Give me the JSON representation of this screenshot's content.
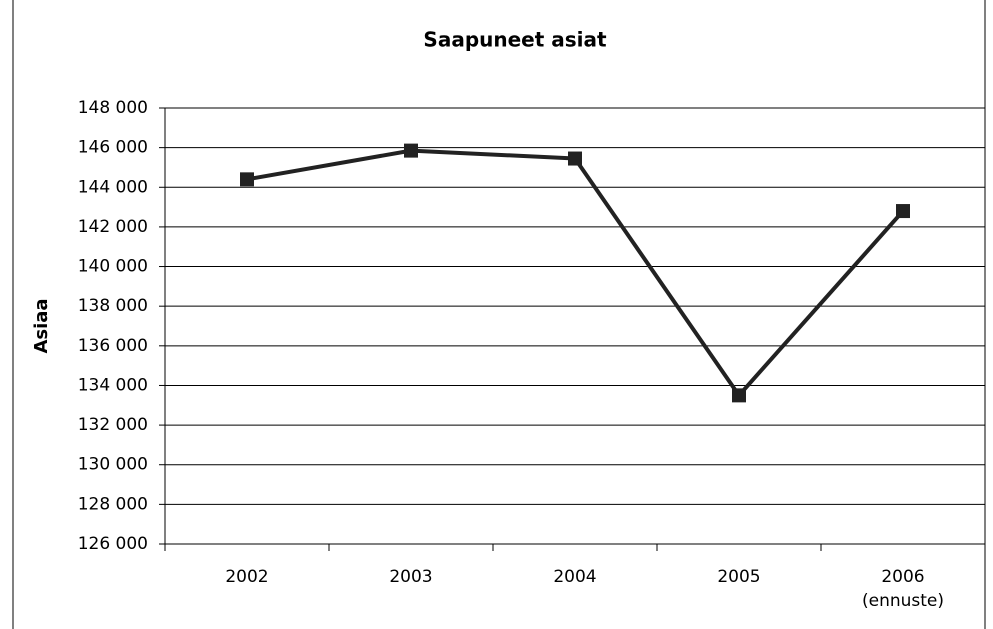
{
  "chart_data": {
    "type": "line",
    "title": "Saapuneet asiat",
    "y_label": "Asiaa",
    "categories": [
      "2002",
      "2003",
      "2004",
      "2005",
      "2006\n(ennuste)"
    ],
    "series": [
      {
        "name": "Saapuneet asiat",
        "color": "#222222",
        "values": [
          144400,
          145850,
          145450,
          133500,
          142800
        ]
      }
    ],
    "ylim": [
      126000,
      148000
    ],
    "yticks": [
      {
        "value": 126000,
        "label": "126 000"
      },
      {
        "value": 128000,
        "label": "128 000"
      },
      {
        "value": 130000,
        "label": "130 000"
      },
      {
        "value": 132000,
        "label": "132 000"
      },
      {
        "value": 134000,
        "label": "134 000"
      },
      {
        "value": 136000,
        "label": "136 000"
      },
      {
        "value": 138000,
        "label": "138 000"
      },
      {
        "value": 140000,
        "label": "140 000"
      },
      {
        "value": 142000,
        "label": "142 000"
      },
      {
        "value": 144000,
        "label": "144 000"
      },
      {
        "value": 146000,
        "label": "146 000"
      },
      {
        "value": 148000,
        "label": "148 000"
      }
    ],
    "grid": true
  }
}
